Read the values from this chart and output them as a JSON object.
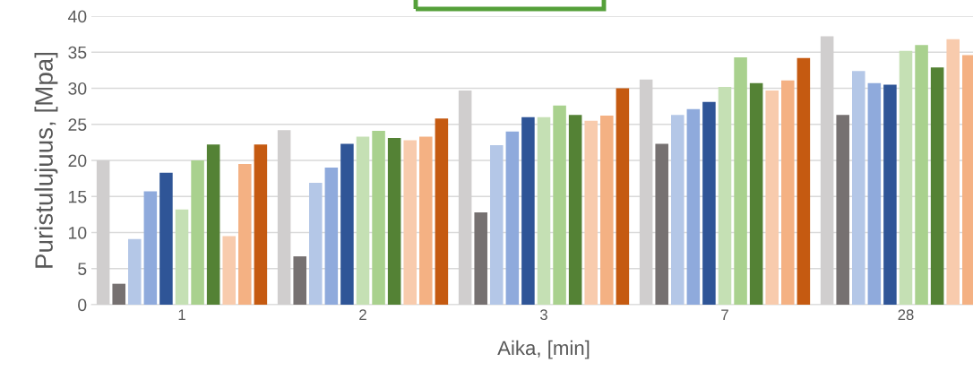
{
  "chart_data": {
    "type": "bar",
    "xlabel": "Aika, [min]",
    "ylabel": "Puristulujuus, [Mpa]",
    "categories": [
      "1",
      "2",
      "3",
      "7",
      "28"
    ],
    "ylim": [
      0,
      40
    ],
    "yticks": [
      0,
      5,
      10,
      15,
      20,
      25,
      30,
      35,
      40
    ],
    "grid": "y",
    "legend": false,
    "series": [
      {
        "color": "#d0cece",
        "values": [
          20.0,
          24.2,
          29.7,
          31.2,
          37.2
        ]
      },
      {
        "color": "#767171",
        "values": [
          2.9,
          6.7,
          12.8,
          22.3,
          26.3
        ]
      },
      {
        "color": "#b4c7e7",
        "values": [
          9.1,
          16.9,
          22.1,
          26.3,
          32.4
        ]
      },
      {
        "color": "#8faadc",
        "values": [
          15.7,
          19.0,
          24.0,
          27.1,
          30.7
        ]
      },
      {
        "color": "#2f5597",
        "values": [
          18.3,
          22.3,
          26.0,
          28.1,
          30.5
        ]
      },
      {
        "color": "#c5e0b4",
        "values": [
          13.2,
          23.3,
          26.0,
          30.2,
          35.2
        ]
      },
      {
        "color": "#a9d18e",
        "values": [
          20.0,
          24.1,
          27.6,
          34.3,
          36.0
        ]
      },
      {
        "color": "#548235",
        "values": [
          22.2,
          23.1,
          26.3,
          30.7,
          32.9
        ]
      },
      {
        "color": "#f8cbad",
        "values": [
          9.5,
          22.8,
          25.5,
          29.7,
          36.8
        ]
      },
      {
        "color": "#f4b183",
        "values": [
          19.5,
          23.3,
          26.2,
          31.1,
          34.6
        ]
      },
      {
        "color": "#c55a11",
        "values": [
          22.2,
          25.8,
          30.0,
          34.2,
          null
        ]
      }
    ]
  }
}
